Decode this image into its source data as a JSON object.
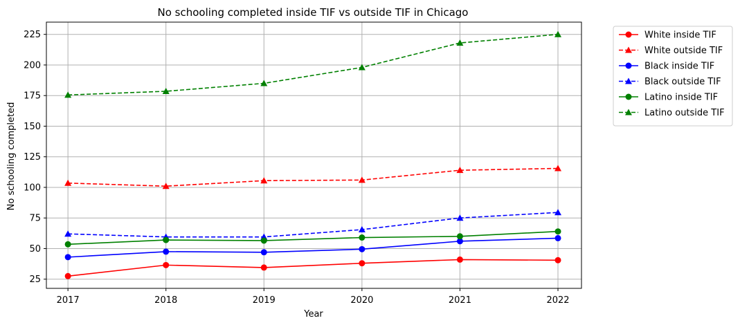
{
  "chart_data": {
    "type": "line",
    "title": "No schooling completed inside TIF vs outside TIF in Chicago",
    "xlabel": "Year",
    "ylabel": "No schooling completed",
    "x": [
      2017,
      2018,
      2019,
      2020,
      2021,
      2022
    ],
    "xlim": [
      2016.78,
      2022.24
    ],
    "ylim": [
      17.5,
      235
    ],
    "yticks": [
      25,
      50,
      75,
      100,
      125,
      150,
      175,
      200,
      225
    ],
    "grid": true,
    "legend_position": "outside-right",
    "series": [
      {
        "name": "White inside TIF",
        "color": "#ff0000",
        "dash": "solid",
        "marker": "circle",
        "values": [
          27.5,
          36.5,
          34.5,
          38,
          41,
          40.5
        ]
      },
      {
        "name": "White outside TIF",
        "color": "#ff0000",
        "dash": "dashed",
        "marker": "triangle",
        "values": [
          103.5,
          101,
          105.5,
          106,
          114,
          115.5
        ]
      },
      {
        "name": "Black inside TIF",
        "color": "#0000ff",
        "dash": "solid",
        "marker": "circle",
        "values": [
          43,
          47.5,
          47,
          49.5,
          56,
          58.5
        ]
      },
      {
        "name": "Black outside TIF",
        "color": "#0000ff",
        "dash": "dashed",
        "marker": "triangle",
        "values": [
          62,
          59.5,
          59.5,
          65.5,
          75,
          79.5
        ]
      },
      {
        "name": "Latino inside TIF",
        "color": "#008000",
        "dash": "solid",
        "marker": "circle",
        "values": [
          53.5,
          57,
          56.5,
          59,
          60,
          64
        ]
      },
      {
        "name": "Latino outside TIF",
        "color": "#008000",
        "dash": "dashed",
        "marker": "triangle",
        "values": [
          175.5,
          178.5,
          185,
          198,
          218,
          225
        ]
      }
    ]
  }
}
